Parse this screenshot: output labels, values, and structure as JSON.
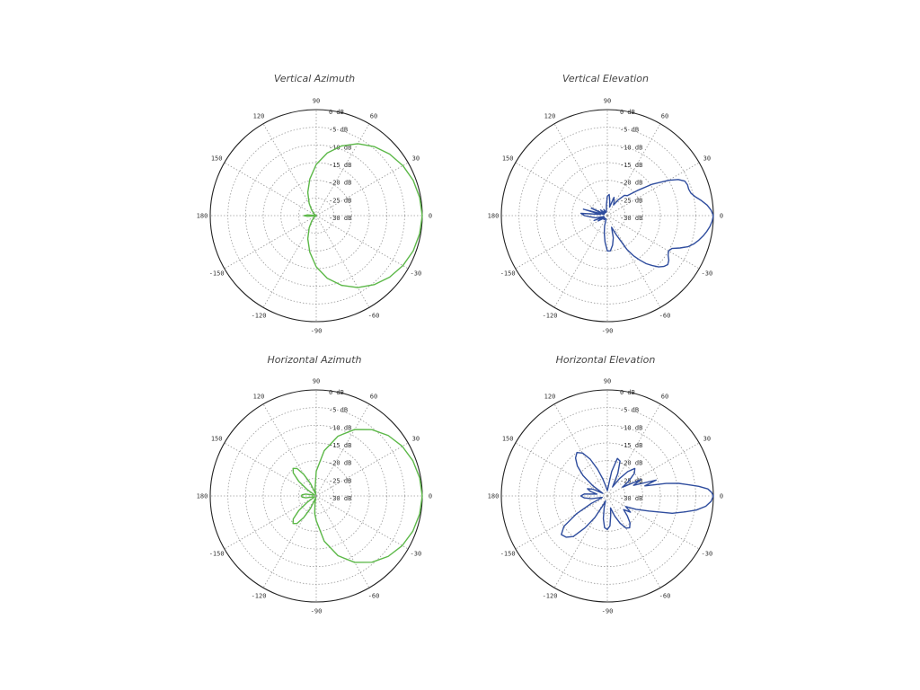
{
  "chart_data": [
    {
      "type": "polar",
      "title": "Vertical Azimuth",
      "color": "#5cb848",
      "angle_labels": [
        "90",
        "60",
        "30",
        "0",
        "-30",
        "-60",
        "-90",
        "-120",
        "-150",
        "180",
        "150",
        "120"
      ],
      "db_labels": [
        "0 dB",
        "-5 dB",
        "-10 dB",
        "-15 dB",
        "-20 dB",
        "-25 dB",
        "-30 dB"
      ],
      "rlim": [
        -30,
        0
      ],
      "grid": true,
      "series": [
        {
          "theta": [
            0,
            10,
            20,
            30,
            40,
            50,
            60,
            70,
            80,
            90,
            100,
            110,
            120,
            130,
            140,
            150,
            160,
            165,
            170,
            175,
            180,
            185,
            190,
            195,
            200,
            210,
            220,
            230,
            240,
            250,
            260,
            270,
            280,
            290,
            300,
            310,
            320,
            330,
            340,
            350,
            360
          ],
          "values": [
            0,
            -0.3,
            -0.8,
            -1.7,
            -2.9,
            -4.5,
            -6.5,
            -9,
            -12,
            -15.5,
            -19.5,
            -23,
            -26,
            -28,
            -29.2,
            -29.8,
            -30,
            -30,
            -29.8,
            -27.5,
            -26.5,
            -27.5,
            -29.8,
            -30,
            -30,
            -29.8,
            -29.2,
            -28,
            -26,
            -23,
            -19.5,
            -15.5,
            -12,
            -9,
            -6.5,
            -4.5,
            -2.9,
            -1.7,
            -0.8,
            -0.3,
            0
          ]
        }
      ]
    },
    {
      "type": "polar",
      "title": "Vertical Elevation",
      "color": "#2f4d9e",
      "angle_labels": [
        "90",
        "60",
        "30",
        "0",
        "-30",
        "-60",
        "-90",
        "-120",
        "-150",
        "180",
        "150",
        "120"
      ],
      "db_labels": [
        "0 dB",
        "-5 dB",
        "-10 dB",
        "-15 dB",
        "-20 dB",
        "-25 dB",
        "-30 dB"
      ],
      "rlim": [
        -30,
        0
      ],
      "grid": true,
      "series": [
        {
          "theta": [
            0,
            3,
            6,
            9,
            12,
            15,
            18,
            21,
            24,
            27,
            30,
            35,
            40,
            45,
            50,
            55,
            60,
            65,
            70,
            75,
            80,
            85,
            90,
            95,
            100,
            110,
            120,
            130,
            140,
            150,
            155,
            160,
            165,
            170,
            175,
            180,
            185,
            190,
            195,
            200,
            205,
            210,
            220,
            230,
            240,
            250,
            255,
            260,
            265,
            270,
            275,
            280,
            285,
            290,
            295,
            300,
            303,
            306,
            309,
            312,
            315,
            318,
            321,
            324,
            327,
            330,
            333,
            336,
            339,
            342,
            345,
            348,
            351,
            354,
            357,
            360
          ],
          "values": [
            0,
            -0.6,
            -1.6,
            -3,
            -4.5,
            -5.5,
            -5.8,
            -5.7,
            -6,
            -7.5,
            -10,
            -14.5,
            -19,
            -22,
            -22.5,
            -24.5,
            -26.5,
            -25.5,
            -24.5,
            -27.5,
            -26,
            -24,
            -24.5,
            -27,
            -28.5,
            -29,
            -28,
            -29,
            -27.5,
            -29,
            -25,
            -29,
            -23,
            -28,
            -22.5,
            -23.5,
            -25.5,
            -26.5,
            -29,
            -26,
            -29,
            -27,
            -29,
            -28.5,
            -29,
            -29,
            -27,
            -25,
            -22.5,
            -20,
            -20,
            -21.5,
            -23.5,
            -26.5,
            -24,
            -19,
            -16.5,
            -14.5,
            -12.5,
            -11,
            -9.5,
            -8.5,
            -8,
            -8.5,
            -9.5,
            -10,
            -9.5,
            -7.5,
            -5.5,
            -4.2,
            -3.2,
            -2.3,
            -1.5,
            -0.8,
            -0.3,
            0
          ]
        }
      ]
    },
    {
      "type": "polar",
      "title": "Horizontal Azimuth",
      "color": "#5cb848",
      "angle_labels": [
        "90",
        "60",
        "30",
        "0",
        "-30",
        "-60",
        "-90",
        "-120",
        "-150",
        "180",
        "150",
        "120"
      ],
      "db_labels": [
        "0 dB",
        "-5 dB",
        "-10 dB",
        "-15 dB",
        "-20 dB",
        "-25 dB",
        "-30 dB"
      ],
      "rlim": [
        -30,
        0
      ],
      "grid": true,
      "series": [
        {
          "theta": [
            0,
            10,
            20,
            30,
            40,
            50,
            60,
            70,
            80,
            90,
            100,
            105,
            110,
            115,
            120,
            125,
            130,
            135,
            140,
            145,
            150,
            160,
            170,
            175,
            180,
            185,
            190,
            200,
            210,
            215,
            220,
            225,
            230,
            235,
            240,
            245,
            250,
            255,
            260,
            265,
            270,
            280,
            290,
            300,
            310,
            320,
            330,
            340,
            350,
            360
          ],
          "values": [
            0,
            -0.3,
            -0.9,
            -1.9,
            -3.4,
            -5.5,
            -8.3,
            -12,
            -17,
            -23,
            -28,
            -29.5,
            -29,
            -26,
            -23,
            -20.5,
            -19.8,
            -20.8,
            -23.5,
            -27,
            -29.5,
            -29.3,
            -27,
            -26,
            -25.8,
            -26,
            -27,
            -29.3,
            -29.5,
            -27,
            -23.5,
            -20.8,
            -19.8,
            -20.5,
            -23,
            -26,
            -29,
            -29.5,
            -28,
            -25,
            -23,
            -17,
            -12,
            -8.3,
            -5.5,
            -3.4,
            -1.9,
            -0.9,
            -0.3,
            0
          ]
        }
      ]
    },
    {
      "type": "polar",
      "title": "Horizontal Elevation",
      "color": "#2f4d9e",
      "angle_labels": [
        "90",
        "60",
        "30",
        "0",
        "-30",
        "-60",
        "-90",
        "-120",
        "-150",
        "180",
        "150",
        "120"
      ],
      "db_labels": [
        "0 dB",
        "-5 dB",
        "-10 dB",
        "-15 dB",
        "-20 dB",
        "-25 dB",
        "-30 dB"
      ],
      "rlim": [
        -30,
        0
      ],
      "grid": true,
      "series": [
        {
          "theta": [
            0,
            2,
            4,
            6,
            8,
            10,
            12,
            15,
            18,
            22,
            26,
            30,
            35,
            40,
            45,
            50,
            55,
            60,
            65,
            70,
            75,
            80,
            85,
            90,
            95,
            100,
            105,
            110,
            115,
            120,
            125,
            130,
            135,
            140,
            145,
            150,
            155,
            160,
            165,
            170,
            175,
            180,
            185,
            190,
            195,
            200,
            205,
            210,
            215,
            220,
            225,
            230,
            235,
            240,
            245,
            250,
            255,
            260,
            265,
            270,
            275,
            280,
            285,
            290,
            295,
            300,
            305,
            310,
            315,
            320,
            325,
            330,
            335,
            340,
            345,
            348,
            351,
            354,
            357,
            360
          ],
          "values": [
            0,
            -0.5,
            -1.5,
            -4,
            -7,
            -9.5,
            -13,
            -19,
            -15.5,
            -22,
            -19.5,
            -25,
            -22.5,
            -20,
            -19,
            -21,
            -24,
            -27,
            -23,
            -19.5,
            -19,
            -23,
            -27.5,
            -28.5,
            -28,
            -27,
            -25,
            -22,
            -18.5,
            -16,
            -15,
            -16,
            -18,
            -21,
            -25,
            -28.5,
            -25.5,
            -24,
            -25,
            -27,
            -23.5,
            -22.5,
            -23.5,
            -25.5,
            -28.5,
            -28,
            -25,
            -20,
            -15,
            -13,
            -13.5,
            -15,
            -19,
            -23,
            -27,
            -28.5,
            -26.5,
            -23.5,
            -21,
            -20.5,
            -21.5,
            -24.5,
            -26.5,
            -24,
            -21.5,
            -19.5,
            -19,
            -20,
            -22,
            -24,
            -22,
            -24,
            -21,
            -17.5,
            -11,
            -8,
            -4.5,
            -2,
            -0.6,
            0
          ]
        }
      ]
    }
  ]
}
